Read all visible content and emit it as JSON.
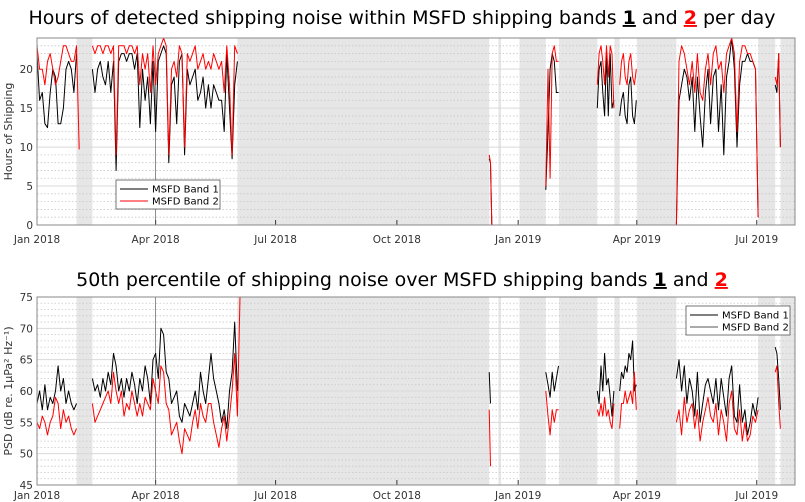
{
  "colors": {
    "band1": "#000000",
    "band2": "#ff0000",
    "gap": "#e6e6e6",
    "legend2_bottom": "#555555"
  },
  "chart_data": [
    {
      "type": "line",
      "title_parts": [
        "Hours of detected shipping noise within MSFD shipping bands ",
        "1",
        " and ",
        "2",
        " per day"
      ],
      "ylabel": "Hours of Shipping",
      "xlabel": "",
      "ylim": [
        0,
        24
      ],
      "yticks": [
        0,
        5,
        10,
        15,
        20
      ],
      "x_units": "days since 1 Jan 2018",
      "xlim": [
        0,
        575
      ],
      "xticks": [
        {
          "day": 0,
          "label": "Jan 2018"
        },
        {
          "day": 90,
          "label": "Apr 2018"
        },
        {
          "day": 181,
          "label": "Jul 2018"
        },
        {
          "day": 273,
          "label": "Oct 2018"
        },
        {
          "day": 365,
          "label": "Jan 2019"
        },
        {
          "day": 455,
          "label": "Apr 2019"
        },
        {
          "day": 546,
          "label": "Jul 2019"
        }
      ],
      "gaps": [
        [
          30,
          42
        ],
        [
          152,
          343
        ],
        [
          350,
          352
        ],
        [
          366,
          386
        ],
        [
          396,
          425
        ],
        [
          438,
          442
        ],
        [
          455,
          485
        ],
        [
          547,
          560
        ],
        [
          564,
          575
        ]
      ],
      "legend": {
        "position": "bottom-left",
        "entries": [
          "MSFD Band 1",
          "MSFD Band 2"
        ]
      },
      "series": [
        {
          "name": "MSFD Band 1",
          "segments": [
            {
              "start": 0,
              "step": 2,
              "values": [
                22,
                16,
                17,
                13,
                12.5,
                17,
                20,
                19,
                13,
                13,
                15,
                20,
                21,
                20,
                17,
                22
              ]
            },
            {
              "start": 42,
              "step": 2,
              "values": [
                20,
                17,
                20,
                21,
                19,
                18,
                21,
                17,
                21,
                7,
                21,
                22,
                22,
                21,
                22,
                22,
                20,
                22,
                12.5,
                20,
                16,
                19,
                13,
                21,
                12,
                21,
                22,
                23,
                22,
                8,
                18,
                19,
                13,
                21,
                22,
                9,
                20,
                18,
                19,
                20,
                16,
                17,
                19,
                15,
                18,
                15,
                18,
                17,
                16,
                16,
                12,
                22,
                15,
                8.5,
                18,
                21
              ]
            },
            {
              "start": 343,
              "step": 1,
              "values": [
                8.5,
                8,
                0,
                0,
                0,
                0,
                0,
                0
              ]
            },
            {
              "start": 352,
              "step": 2,
              "values": [
                0,
                0,
                0,
                0,
                0,
                0,
                0,
                0
              ]
            },
            {
              "start": 386,
              "step": 1.6,
              "values": [
                4.5,
                12,
                20,
                22,
                21,
                17,
                17
              ]
            },
            {
              "start": 425,
              "step": 1.4,
              "values": [
                15,
                20,
                21,
                17,
                14,
                22,
                14,
                22,
                15,
                16
              ]
            },
            {
              "start": 442,
              "step": 1.4,
              "values": [
                14,
                16,
                17,
                14,
                13,
                18,
                19,
                14,
                13,
                16
              ]
            },
            {
              "start": 485,
              "step": 2,
              "values": [
                0,
                16,
                18,
                20,
                19,
                16,
                19,
                12,
                19,
                14,
                10,
                17,
                20,
                13,
                19,
                20,
                12,
                18,
                9,
                19,
                21,
                24,
                20,
                10,
                18,
                21,
                21,
                22,
                21,
                21,
                20,
                1
              ]
            },
            {
              "start": 560,
              "step": 1.3,
              "values": [
                18,
                17,
                22,
                10
              ]
            }
          ]
        },
        {
          "name": "MSFD Band 2",
          "segments": [
            {
              "start": 0,
              "step": 2,
              "values": [
                23,
                20,
                20,
                18,
                21,
                22,
                20,
                18,
                19,
                21,
                23,
                23,
                22,
                21,
                21,
                23,
                9.7
              ]
            },
            {
              "start": 42,
              "step": 2,
              "values": [
                23,
                22,
                23,
                23,
                22,
                23,
                23,
                22,
                23,
                9,
                23,
                23,
                23,
                22,
                23,
                23,
                22,
                23,
                18,
                22,
                20,
                22,
                17,
                23,
                18,
                22,
                23,
                24,
                23,
                9,
                20,
                21,
                19,
                23,
                22,
                10,
                22,
                21,
                22,
                23,
                20,
                21,
                22,
                20,
                21,
                20,
                22,
                21,
                20,
                21,
                17,
                23,
                18,
                9,
                23,
                22
              ]
            },
            {
              "start": 343,
              "step": 1,
              "values": [
                9,
                8,
                0,
                0,
                0,
                0,
                0,
                0
              ]
            },
            {
              "start": 352,
              "step": 2,
              "values": [
                0,
                0,
                0,
                0,
                0,
                0,
                0,
                0
              ]
            },
            {
              "start": 386,
              "step": 1.6,
              "values": [
                5,
                20,
                6,
                22,
                23,
                21,
                21
              ]
            },
            {
              "start": 425,
              "step": 1.4,
              "values": [
                18,
                22,
                23,
                21,
                18,
                23,
                19,
                23,
                22,
                15
              ]
            },
            {
              "start": 442,
              "step": 1.4,
              "values": [
                18,
                21,
                22,
                19,
                18,
                21,
                22,
                19,
                18,
                20
              ]
            },
            {
              "start": 485,
              "step": 2,
              "values": [
                0,
                21,
                23,
                22,
                20,
                18,
                21,
                17,
                22,
                17,
                16,
                20,
                22,
                18,
                22,
                23,
                20,
                21,
                17,
                22,
                23,
                24,
                22,
                12,
                21,
                23,
                23,
                22,
                22,
                21,
                20,
                1
              ]
            },
            {
              "start": 560,
              "step": 1.3,
              "values": [
                19,
                18,
                22,
                10
              ]
            }
          ]
        }
      ]
    },
    {
      "type": "line",
      "title_parts": [
        "50th percentile of shipping noise over MSFD shipping bands ",
        "1",
        " and ",
        "2",
        ""
      ],
      "ylabel": "PSD (dB re. 1μPa² Hz⁻¹)",
      "xlabel": "",
      "ylim": [
        45,
        75
      ],
      "yticks": [
        45,
        50,
        55,
        60,
        65,
        70,
        75
      ],
      "x_units": "days since 1 Jan 2018",
      "xlim": [
        0,
        575
      ],
      "xticks": [
        {
          "day": 0,
          "label": "Jan 2018"
        },
        {
          "day": 90,
          "label": "Apr 2018"
        },
        {
          "day": 181,
          "label": "Jul 2018"
        },
        {
          "day": 273,
          "label": "Oct 2018"
        },
        {
          "day": 365,
          "label": "Jan 2019"
        },
        {
          "day": 455,
          "label": "Apr 2019"
        },
        {
          "day": 546,
          "label": "Jul 2019"
        }
      ],
      "gaps": [
        [
          30,
          42
        ],
        [
          152,
          343
        ],
        [
          350,
          352
        ],
        [
          366,
          386
        ],
        [
          396,
          425
        ],
        [
          438,
          442
        ],
        [
          455,
          485
        ],
        [
          547,
          560
        ],
        [
          564,
          575
        ]
      ],
      "legend": {
        "position": "top-right",
        "entries": [
          "MSFD Band 1",
          "MSFD Band 2"
        ]
      },
      "series": [
        {
          "name": "MSFD Band 1",
          "segments": [
            {
              "start": 0,
              "step": 2,
              "values": [
                58,
                60,
                57,
                61,
                57,
                59,
                58,
                60,
                64,
                60,
                62,
                58,
                60,
                58,
                57,
                58
              ]
            },
            {
              "start": 42,
              "step": 2,
              "values": [
                62,
                60,
                61,
                59,
                62,
                60,
                63,
                61,
                66,
                64,
                60,
                62,
                59,
                62,
                60,
                63,
                61,
                58,
                62,
                60,
                64,
                62,
                58,
                65,
                66,
                62,
                70,
                69,
                63,
                62,
                58,
                59,
                60,
                56,
                55,
                58,
                57,
                56,
                58,
                60,
                57,
                63,
                60,
                58,
                62,
                66,
                62,
                60,
                58,
                55,
                57,
                54,
                60,
                63,
                71,
                60
              ]
            },
            {
              "start": 343,
              "step": 1,
              "values": [
                63,
                58
              ]
            },
            {
              "start": 386,
              "step": 1.6,
              "values": [
                63,
                61,
                59,
                63,
                60,
                62,
                64
              ]
            },
            {
              "start": 425,
              "step": 1.4,
              "values": [
                60,
                58,
                64,
                60,
                66,
                61,
                62,
                59,
                56,
                60
              ]
            },
            {
              "start": 442,
              "step": 1.4,
              "values": [
                60,
                63,
                62,
                64,
                63,
                66,
                65,
                68,
                60,
                61
              ]
            },
            {
              "start": 485,
              "step": 2,
              "values": [
                62,
                65,
                60,
                64,
                58,
                62,
                60,
                56,
                63,
                55,
                58,
                61,
                62,
                60,
                58,
                62,
                57,
                62,
                59,
                56,
                62,
                64,
                56,
                55,
                61,
                55,
                57,
                53,
                55,
                58,
                56,
                59
              ]
            },
            {
              "start": 560,
              "step": 1.3,
              "values": [
                67,
                66,
                62,
                57
              ]
            }
          ]
        },
        {
          "name": "MSFD Band 2",
          "segments": [
            {
              "start": 0,
              "step": 2,
              "values": [
                55,
                54,
                56,
                55,
                53,
                55,
                56,
                59,
                58,
                54,
                57,
                55,
                56,
                54,
                53,
                54
              ]
            },
            {
              "start": 42,
              "step": 2,
              "values": [
                58,
                55,
                56,
                57,
                58,
                59,
                60,
                58,
                63,
                60,
                58,
                60,
                56,
                58,
                57,
                60,
                58,
                56,
                58,
                56,
                59,
                58,
                57,
                62,
                60,
                58,
                64,
                63,
                58,
                57,
                53,
                54,
                55,
                52,
                50,
                54,
                53,
                52,
                55,
                57,
                54,
                58,
                56,
                55,
                58,
                58,
                55,
                53,
                51,
                54,
                56,
                52,
                56,
                60,
                66,
                56,
                75
              ]
            },
            {
              "start": 343,
              "step": 1,
              "values": [
                57,
                48
              ]
            },
            {
              "start": 386,
              "step": 1.6,
              "values": [
                60,
                56,
                53,
                57,
                55,
                57,
                57
              ]
            },
            {
              "start": 425,
              "step": 1.4,
              "values": [
                57,
                56,
                58,
                56,
                59,
                56,
                57,
                55,
                54,
                58
              ]
            },
            {
              "start": 442,
              "step": 1.4,
              "values": [
                54,
                58,
                58,
                60,
                58,
                59,
                60,
                58,
                63,
                57
              ]
            },
            {
              "start": 485,
              "step": 2,
              "values": [
                55,
                57,
                53,
                59,
                55,
                57,
                58,
                54,
                57,
                52,
                55,
                57,
                59,
                56,
                55,
                58,
                53,
                57,
                55,
                52,
                58,
                60,
                54,
                53,
                57,
                52,
                55,
                52,
                53,
                56,
                55,
                57
              ]
            },
            {
              "start": 560,
              "step": 1.3,
              "values": [
                63,
                64,
                58,
                54
              ]
            }
          ]
        }
      ]
    }
  ]
}
